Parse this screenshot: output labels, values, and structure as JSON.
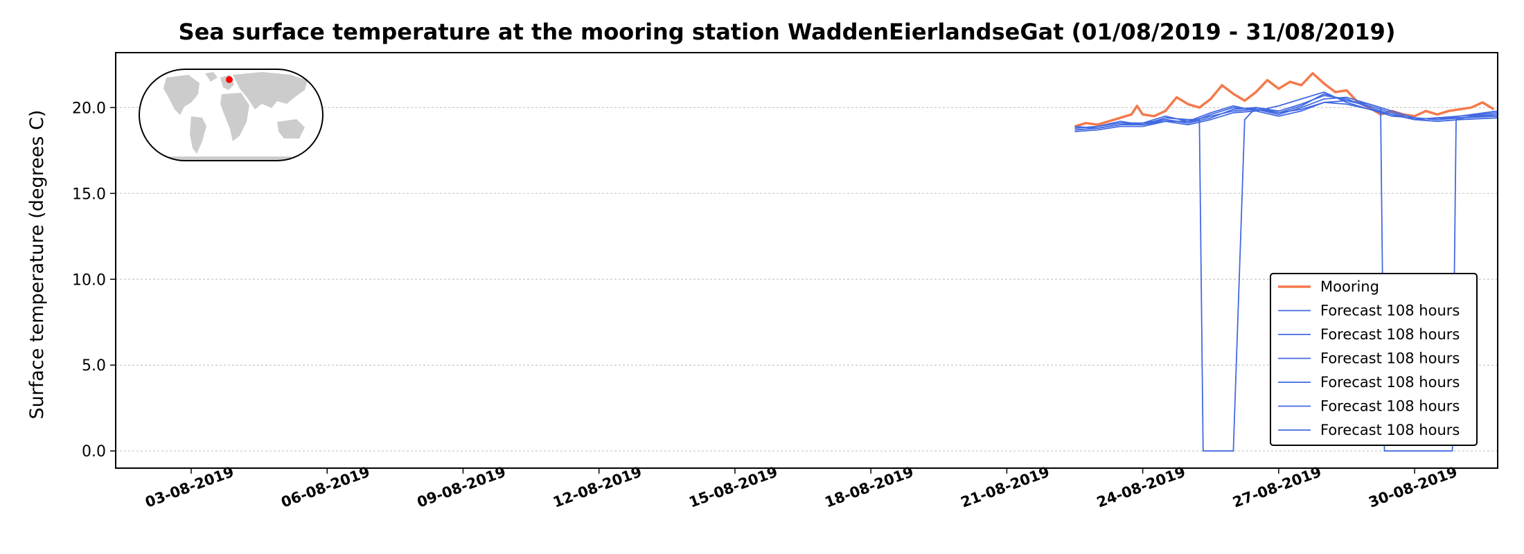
{
  "chart_data": {
    "type": "line",
    "title": "Sea surface temperature at the mooring station WaddenEierlandseGat (01/08/2019 - 31/08/2019)",
    "xlabel": "",
    "ylabel": "Surface temperature (degrees C)",
    "xlim": [
      "2019-08-01T08:00",
      "2019-08-31T20:00"
    ],
    "ylim": [
      -1.0,
      23.2
    ],
    "yticks": [
      "0.0",
      "5.0",
      "10.0",
      "15.0",
      "20.0"
    ],
    "ytick_values": [
      0,
      5,
      10,
      15,
      20
    ],
    "xticks": [
      "03-08-2019",
      "06-08-2019",
      "09-08-2019",
      "12-08-2019",
      "15-08-2019",
      "18-08-2019",
      "21-08-2019",
      "24-08-2019",
      "27-08-2019",
      "30-08-2019"
    ],
    "xtick_values": [
      "2019-08-03",
      "2019-08-06",
      "2019-08-09",
      "2019-08-12",
      "2019-08-15",
      "2019-08-18",
      "2019-08-21",
      "2019-08-24",
      "2019-08-27",
      "2019-08-30"
    ],
    "grid": "horizontal dotted",
    "legend_position": "bottom-right",
    "inset_map": {
      "marker": "station location",
      "marker_color": "#ff0000"
    },
    "colors": {
      "mooring": "#f4794b",
      "forecast": "#4169e1"
    },
    "series": [
      {
        "name": "Mooring",
        "color": "#f4794b",
        "x": [
          "2019-08-22T12:00",
          "2019-08-22T18:00",
          "2019-08-23T00:00",
          "2019-08-23T06:00",
          "2019-08-23T12:00",
          "2019-08-23T18:00",
          "2019-08-23T21:00",
          "2019-08-24T00:00",
          "2019-08-24T06:00",
          "2019-08-24T12:00",
          "2019-08-24T18:00",
          "2019-08-25T00:00",
          "2019-08-25T06:00",
          "2019-08-25T12:00",
          "2019-08-25T18:00",
          "2019-08-26T00:00",
          "2019-08-26T06:00",
          "2019-08-26T12:00",
          "2019-08-26T18:00",
          "2019-08-27T00:00",
          "2019-08-27T06:00",
          "2019-08-27T12:00",
          "2019-08-27T18:00",
          "2019-08-28T00:00",
          "2019-08-28T06:00",
          "2019-08-28T12:00",
          "2019-08-28T18:00",
          "2019-08-29T00:00",
          "2019-08-29T06:00",
          "2019-08-29T12:00",
          "2019-08-29T18:00",
          "2019-08-30T00:00",
          "2019-08-30T06:00",
          "2019-08-30T12:00",
          "2019-08-30T18:00",
          "2019-08-31T00:00",
          "2019-08-31T06:00",
          "2019-08-31T12:00",
          "2019-08-31T18:00"
        ],
        "y": [
          18.9,
          19.1,
          19.0,
          19.2,
          19.4,
          19.6,
          20.1,
          19.6,
          19.5,
          19.8,
          20.6,
          20.2,
          20.0,
          20.5,
          21.3,
          20.8,
          20.4,
          20.9,
          21.6,
          21.1,
          21.5,
          21.3,
          22.0,
          21.4,
          20.9,
          21.0,
          20.3,
          20.0,
          19.6,
          19.8,
          19.6,
          19.5,
          19.8,
          19.6,
          19.8,
          19.9,
          20.0,
          20.3,
          19.9
        ]
      },
      {
        "name": "Forecast 108 hours",
        "color": "#4169e1",
        "x": [
          "2019-08-22T12:00",
          "2019-08-23T00:00",
          "2019-08-23T12:00",
          "2019-08-24T00:00",
          "2019-08-24T12:00",
          "2019-08-25T00:00",
          "2019-08-25T06:00",
          "2019-08-25T08:00",
          "2019-08-25T18:00",
          "2019-08-26T00:00",
          "2019-08-26T06:00",
          "2019-08-26T12:00",
          "2019-08-27T00:00",
          "2019-08-27T12:00",
          "2019-08-28T00:00",
          "2019-08-28T12:00",
          "2019-08-29T00:00",
          "2019-08-29T06:00",
          "2019-08-29T08:00",
          "2019-08-29T18:00",
          "2019-08-30T00:00",
          "2019-08-30T20:00",
          "2019-08-30T22:00",
          "2019-08-31T06:00",
          "2019-08-31T20:00"
        ],
        "y": [
          18.8,
          18.9,
          19.2,
          19.0,
          19.4,
          19.3,
          19.3,
          0.0,
          0.0,
          0.0,
          19.3,
          20.0,
          19.7,
          19.9,
          20.3,
          20.4,
          20.2,
          20.0,
          0.0,
          0.0,
          0.0,
          0.0,
          19.3,
          19.5,
          19.6
        ]
      },
      {
        "name": "Forecast 108 hours",
        "color": "#4169e1",
        "x": [
          "2019-08-22T12:00",
          "2019-08-23T00:00",
          "2019-08-23T12:00",
          "2019-08-24T00:00",
          "2019-08-24T12:00",
          "2019-08-25T00:00",
          "2019-08-25T12:00",
          "2019-08-26T00:00",
          "2019-08-26T12:00",
          "2019-08-27T00:00",
          "2019-08-27T12:00",
          "2019-08-28T00:00",
          "2019-08-28T12:00",
          "2019-08-29T00:00",
          "2019-08-29T12:00",
          "2019-08-30T00:00",
          "2019-08-30T12:00",
          "2019-08-31T00:00",
          "2019-08-31T20:00"
        ],
        "y": [
          18.7,
          18.8,
          19.0,
          19.0,
          19.3,
          19.1,
          19.4,
          19.9,
          20.0,
          19.8,
          20.2,
          20.7,
          20.5,
          20.0,
          19.6,
          19.3,
          19.4,
          19.5,
          19.8
        ]
      },
      {
        "name": "Forecast 108 hours",
        "color": "#4169e1",
        "x": [
          "2019-08-22T12:00",
          "2019-08-23T00:00",
          "2019-08-23T12:00",
          "2019-08-24T00:00",
          "2019-08-24T12:00",
          "2019-08-25T00:00",
          "2019-08-25T12:00",
          "2019-08-26T00:00",
          "2019-08-26T12:00",
          "2019-08-27T00:00",
          "2019-08-27T12:00",
          "2019-08-28T00:00",
          "2019-08-28T12:00",
          "2019-08-29T00:00",
          "2019-08-29T12:00",
          "2019-08-30T00:00",
          "2019-08-30T12:00",
          "2019-08-31T00:00",
          "2019-08-31T20:00"
        ],
        "y": [
          18.8,
          18.9,
          19.1,
          19.1,
          19.5,
          19.2,
          19.7,
          20.1,
          19.8,
          20.1,
          20.5,
          20.9,
          20.3,
          19.9,
          19.5,
          19.4,
          19.3,
          19.4,
          19.6
        ]
      },
      {
        "name": "Forecast 108 hours",
        "color": "#4169e1",
        "x": [
          "2019-08-22T12:00",
          "2019-08-23T00:00",
          "2019-08-23T12:00",
          "2019-08-24T00:00",
          "2019-08-24T12:00",
          "2019-08-25T00:00",
          "2019-08-25T12:00",
          "2019-08-26T00:00",
          "2019-08-26T12:00",
          "2019-08-27T00:00",
          "2019-08-27T12:00",
          "2019-08-28T00:00",
          "2019-08-28T12:00",
          "2019-08-29T00:00",
          "2019-08-29T12:00",
          "2019-08-30T00:00",
          "2019-08-30T12:00",
          "2019-08-31T00:00",
          "2019-08-31T20:00"
        ],
        "y": [
          18.9,
          18.8,
          19.0,
          19.0,
          19.2,
          19.2,
          19.5,
          19.8,
          19.9,
          19.6,
          20.0,
          20.5,
          20.6,
          20.2,
          19.8,
          19.4,
          19.3,
          19.5,
          19.7
        ]
      },
      {
        "name": "Forecast 108 hours",
        "color": "#4169e1",
        "x": [
          "2019-08-22T12:00",
          "2019-08-23T00:00",
          "2019-08-23T12:00",
          "2019-08-24T00:00",
          "2019-08-24T12:00",
          "2019-08-25T00:00",
          "2019-08-25T12:00",
          "2019-08-26T00:00",
          "2019-08-26T12:00",
          "2019-08-27T00:00",
          "2019-08-27T12:00",
          "2019-08-28T00:00",
          "2019-08-28T12:00",
          "2019-08-29T00:00",
          "2019-08-29T12:00",
          "2019-08-30T00:00",
          "2019-08-30T12:00",
          "2019-08-31T00:00",
          "2019-08-31T20:00"
        ],
        "y": [
          18.6,
          18.7,
          18.9,
          18.9,
          19.2,
          19.0,
          19.3,
          19.7,
          19.8,
          19.5,
          19.8,
          20.3,
          20.2,
          19.9,
          19.6,
          19.3,
          19.2,
          19.3,
          19.4
        ]
      },
      {
        "name": "Forecast 108 hours",
        "color": "#4169e1",
        "x": [
          "2019-08-22T12:00",
          "2019-08-23T00:00",
          "2019-08-23T12:00",
          "2019-08-24T00:00",
          "2019-08-24T12:00",
          "2019-08-25T00:00",
          "2019-08-25T12:00",
          "2019-08-26T00:00",
          "2019-08-26T12:00",
          "2019-08-27T00:00",
          "2019-08-27T12:00",
          "2019-08-28T00:00",
          "2019-08-28T12:00",
          "2019-08-29T00:00",
          "2019-08-29T12:00",
          "2019-08-30T00:00",
          "2019-08-30T12:00",
          "2019-08-31T00:00",
          "2019-08-31T20:00"
        ],
        "y": [
          18.7,
          18.8,
          19.0,
          19.1,
          19.3,
          19.1,
          19.6,
          20.0,
          19.9,
          19.7,
          20.1,
          20.8,
          20.4,
          20.1,
          19.7,
          19.3,
          19.4,
          19.4,
          19.5
        ]
      }
    ]
  }
}
